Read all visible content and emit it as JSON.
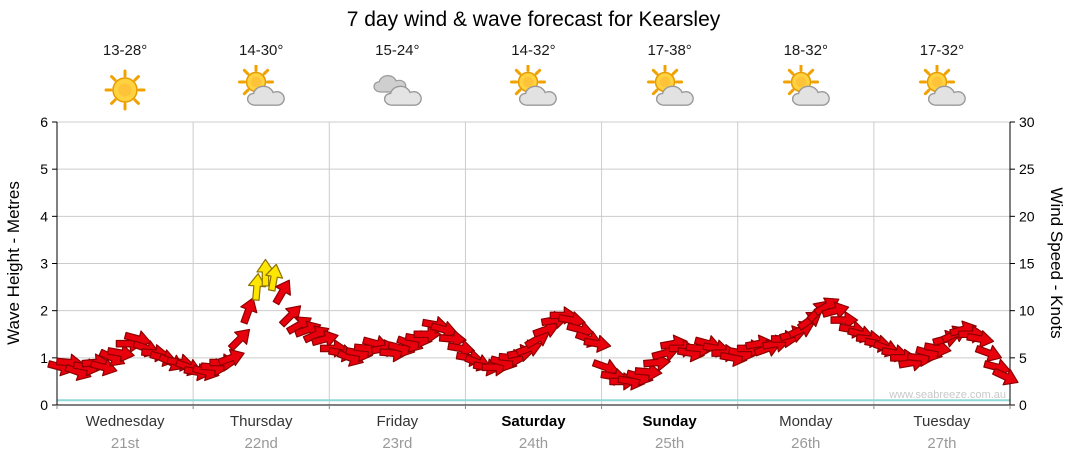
{
  "title": "7 day wind & wave forecast for Kearsley",
  "axes": {
    "left_label": "Wave Height - Metres",
    "right_label": "Wind Speed - Knots"
  },
  "days": [
    {
      "name": "Wednesday",
      "date": "21st",
      "temp": "13-28°",
      "icon": "sunny",
      "bold": false
    },
    {
      "name": "Thursday",
      "date": "22nd",
      "temp": "14-30°",
      "icon": "partly-cloudy",
      "bold": false
    },
    {
      "name": "Friday",
      "date": "23rd",
      "temp": "15-24°",
      "icon": "cloudy",
      "bold": false
    },
    {
      "name": "Saturday",
      "date": "24th",
      "temp": "14-32°",
      "icon": "partly-cloudy",
      "bold": true
    },
    {
      "name": "Sunday",
      "date": "25th",
      "temp": "17-38°",
      "icon": "partly-cloudy",
      "bold": true
    },
    {
      "name": "Monday",
      "date": "26th",
      "temp": "18-32°",
      "icon": "partly-cloudy",
      "bold": false
    },
    {
      "name": "Tuesday",
      "date": "27th",
      "temp": "17-32°",
      "icon": "partly-cloudy",
      "bold": false
    }
  ],
  "chart_data": {
    "type": "line",
    "title": "7 day wind & wave forecast for Kearsley",
    "categories": [
      "Wednesday 21st",
      "Thursday 22nd",
      "Friday 23rd",
      "Saturday 24th",
      "Sunday 25th",
      "Monday 26th",
      "Tuesday 27th"
    ],
    "samples_per_day": 16,
    "grid": true,
    "grid_color": "#cccccc",
    "watermark": "www.seabreeze.com.au",
    "left_axis": {
      "label": "Wave Height - Metres",
      "range": [
        0,
        6
      ],
      "ticks": [
        0,
        1,
        2,
        3,
        4,
        5,
        6
      ]
    },
    "right_axis": {
      "label": "Wind Speed - Knots",
      "range": [
        0,
        30
      ],
      "ticks": [
        0,
        5,
        10,
        15,
        20,
        25,
        30
      ]
    },
    "series": [
      {
        "name": "Wind Speed",
        "unit": "knots",
        "axis": "right",
        "style": "wind-arrows",
        "color": "#e8000d",
        "outline": "#8c0000",
        "strong_color": "#ffe600",
        "strong_outline": "#8c7000",
        "strong_threshold_knots": 12.5,
        "values_per_day": [
          [
            4,
            4.5,
            3.5,
            4,
            4.5,
            4,
            5,
            5.5,
            6.5,
            7,
            6,
            5.5,
            5,
            4.5,
            4.5,
            4
          ],
          [
            3.5,
            3.5,
            4,
            4.5,
            5,
            7,
            10,
            12.5,
            14,
            13.5,
            12,
            9.5,
            8.5,
            8,
            7.5,
            7
          ],
          [
            6,
            5.5,
            5,
            5.5,
            6,
            6.5,
            6,
            5.5,
            6,
            6.5,
            7,
            7.5,
            8.5,
            8,
            7,
            6
          ],
          [
            5,
            4.5,
            4,
            4,
            4.5,
            5,
            5.5,
            6,
            7,
            8,
            9,
            9.5,
            9,
            8,
            7,
            6.5
          ],
          [
            4,
            3,
            2.5,
            2.5,
            3,
            3.5,
            4.5,
            5.5,
            6.5,
            6,
            5.5,
            6,
            6.5,
            6,
            5.5,
            5
          ],
          [
            5.5,
            6,
            6.5,
            6,
            6.5,
            7,
            7.5,
            8,
            9,
            10,
            10.5,
            10,
            9,
            8,
            7.5,
            7
          ],
          [
            6.5,
            6,
            5.5,
            5,
            4.5,
            5,
            5.5,
            6,
            7,
            7.5,
            8,
            7.5,
            7,
            5.5,
            4,
            3
          ]
        ],
        "direction_deg_per_day": [
          [
            15,
            5,
            20,
            10,
            -5,
            15,
            25,
            10,
            0,
            15,
            20,
            5,
            15,
            25,
            10,
            20
          ],
          [
            10,
            15,
            5,
            0,
            -20,
            -45,
            -70,
            -85,
            -90,
            -80,
            -60,
            -45,
            -30,
            -20,
            -25,
            -15
          ],
          [
            0,
            10,
            20,
            10,
            5,
            15,
            -10,
            5,
            15,
            20,
            10,
            0,
            10,
            15,
            5,
            10
          ],
          [
            10,
            20,
            10,
            0,
            15,
            5,
            -10,
            -20,
            -30,
            -20,
            -10,
            0,
            10,
            15,
            20,
            10
          ],
          [
            20,
            10,
            0,
            10,
            15,
            5,
            -5,
            -15,
            -10,
            0,
            10,
            5,
            15,
            10,
            0,
            10
          ],
          [
            10,
            0,
            -10,
            -20,
            -10,
            0,
            -15,
            -25,
            -35,
            -45,
            -30,
            -15,
            0,
            10,
            15,
            5
          ],
          [
            10,
            20,
            10,
            0,
            -10,
            5,
            15,
            10,
            -15,
            -25,
            -15,
            0,
            10,
            20,
            15,
            25
          ]
        ]
      },
      {
        "name": "Wave Height",
        "unit": "metres",
        "axis": "left",
        "style": "line",
        "color": "#8fd8d8",
        "values": [
          0.1,
          0.1,
          0.1,
          0.1,
          0.1,
          0.1,
          0.1,
          0.1
        ]
      }
    ]
  }
}
